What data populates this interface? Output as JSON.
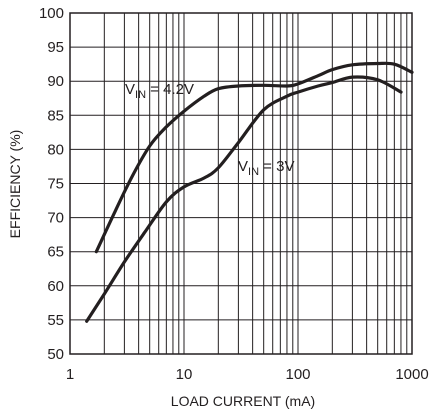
{
  "chart_data": {
    "type": "line",
    "xlabel": "LOAD CURRENT (mA)",
    "ylabel": "EFFICIENCY (%)",
    "x_scale": "log",
    "xlim": [
      1,
      1000
    ],
    "ylim": [
      50,
      100
    ],
    "x_ticks": [
      "1",
      "10",
      "100",
      "1000"
    ],
    "y_ticks": [
      "50",
      "55",
      "60",
      "65",
      "70",
      "75",
      "80",
      "85",
      "90",
      "95",
      "100"
    ],
    "grid": true,
    "series": [
      {
        "label_main": "V",
        "label_sub": "IN",
        "label_rest": " = 4.2V",
        "x": [
          1.7,
          2.5,
          3.5,
          5,
          7,
          10,
          15,
          20,
          30,
          50,
          80,
          100,
          150,
          200,
          300,
          500,
          700,
          1000
        ],
        "y": [
          65,
          71,
          76,
          80.5,
          83.3,
          85.6,
          87.8,
          88.9,
          89.3,
          89.4,
          89.3,
          89.6,
          90.8,
          91.7,
          92.4,
          92.6,
          92.5,
          91.3
        ]
      },
      {
        "label_main": "V",
        "label_sub": "IN",
        "label_rest": " = 3V",
        "x": [
          1.4,
          2,
          3,
          4.5,
          7,
          10,
          15,
          20,
          30,
          50,
          80,
          100,
          150,
          200,
          300,
          500,
          800
        ],
        "y": [
          54.8,
          58.8,
          63.5,
          67.8,
          72.3,
          74.5,
          75.8,
          77.3,
          81,
          85.8,
          87.8,
          88.4,
          89.3,
          89.8,
          90.6,
          90.2,
          88.4
        ]
      }
    ]
  }
}
